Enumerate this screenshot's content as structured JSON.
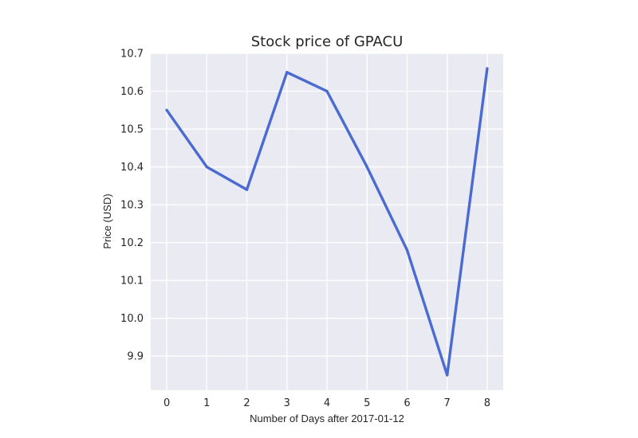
{
  "chart_data": {
    "type": "line",
    "title": "Stock price of GPACU",
    "xlabel": "Number of Days after 2017-01-12",
    "ylabel": "Price (USD)",
    "x": [
      0,
      1,
      2,
      3,
      4,
      5,
      6,
      7,
      8
    ],
    "series": [
      {
        "name": "GPACU",
        "values": [
          10.55,
          10.4,
          10.34,
          10.65,
          10.6,
          10.4,
          10.18,
          9.85,
          10.66
        ]
      }
    ],
    "xlim": [
      -0.4,
      8.4
    ],
    "ylim": [
      9.81,
      10.7
    ],
    "xticks": [
      "0",
      "1",
      "2",
      "3",
      "4",
      "5",
      "6",
      "7",
      "8"
    ],
    "yticks": [
      "9.9",
      "10.0",
      "10.1",
      "10.2",
      "10.3",
      "10.4",
      "10.5",
      "10.6",
      "10.7"
    ],
    "grid": true,
    "line_color": "#4a6bd1",
    "plot_background": "#eaeaf2",
    "grid_color": "#ffffff"
  }
}
